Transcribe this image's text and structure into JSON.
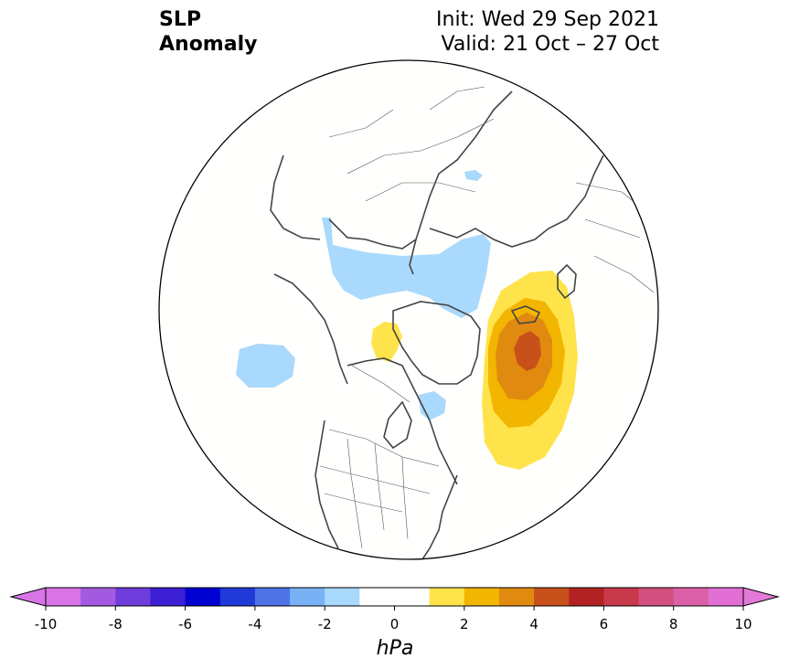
{
  "header": {
    "title_line1": "SLP",
    "title_line2": "Anomaly",
    "init_text": "Init: Wed 29 Sep 2021",
    "valid_text": "Valid: 21 Oct – 27 Oct"
  },
  "colorbar": {
    "unit_label": "hPa",
    "min": -10,
    "max": 10,
    "step": 1,
    "tick_labels": [
      "-10",
      "-8",
      "-6",
      "-4",
      "-2",
      "0",
      "2",
      "4",
      "6",
      "8",
      "10"
    ],
    "colors": [
      "#d874e6",
      "#a45ae0",
      "#6f3ddc",
      "#3c1fd4",
      "#0000d0",
      "#1f3ad8",
      "#4f72e6",
      "#78b2f4",
      "#a9d9fc",
      "#ffffff",
      "#ffffff",
      "#ffe34b",
      "#f2b500",
      "#e08a10",
      "#c8501a",
      "#b22222",
      "#c8394c",
      "#d45080",
      "#dc60a8",
      "#e270d4"
    ],
    "extend_low_color": "#d874e6",
    "extend_high_color": "#e47ad8"
  },
  "map": {
    "projection": "north-polar-stereographic",
    "ocean_color": "#fffffd",
    "coast_color": "#444444",
    "anomalies": [
      {
        "name": "north-atlantic-high",
        "sign": "positive",
        "peak_hpa": 5
      },
      {
        "name": "greenland-small-high",
        "sign": "positive",
        "peak_hpa": 1
      },
      {
        "name": "siberia-low-band",
        "sign": "negative",
        "peak_hpa": -1
      },
      {
        "name": "north-pacific-low",
        "sign": "negative",
        "peak_hpa": -1
      },
      {
        "name": "hudson-low",
        "sign": "negative",
        "peak_hpa": -1
      }
    ]
  }
}
